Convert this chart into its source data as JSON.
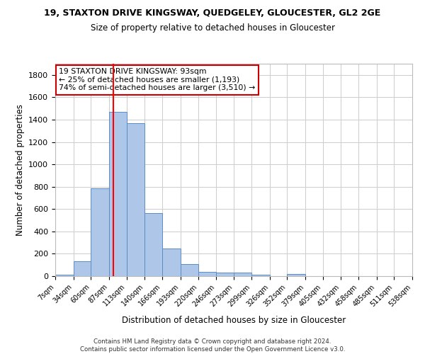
{
  "title1": "19, STAXTON DRIVE KINGSWAY, QUEDGELEY, GLOUCESTER, GL2 2GE",
  "title2": "Size of property relative to detached houses in Gloucester",
  "xlabel": "Distribution of detached houses by size in Gloucester",
  "ylabel": "Number of detached properties",
  "footnote": "Contains HM Land Registry data © Crown copyright and database right 2024.\nContains public sector information licensed under the Open Government Licence v3.0.",
  "bin_edges": [
    7,
    34,
    60,
    87,
    113,
    140,
    166,
    193,
    220,
    246,
    273,
    299,
    326,
    352,
    379,
    405,
    432,
    458,
    485,
    511,
    538
  ],
  "bar_heights": [
    15,
    130,
    785,
    1470,
    1370,
    565,
    250,
    110,
    35,
    30,
    30,
    15,
    0,
    20,
    0,
    0,
    0,
    0,
    0,
    0
  ],
  "bar_color": "#aec6e8",
  "bar_edge_color": "#5b8cc8",
  "vline_x": 93,
  "vline_color": "red",
  "ylim": [
    0,
    1900
  ],
  "yticks": [
    0,
    200,
    400,
    600,
    800,
    1000,
    1200,
    1400,
    1600,
    1800
  ],
  "annotation_box_text": "19 STAXTON DRIVE KINGSWAY: 93sqm\n← 25% of detached houses are smaller (1,193)\n74% of semi-detached houses are larger (3,510) →",
  "annotation_box_color": "#cc0000",
  "background_color": "#ffffff",
  "grid_color": "#cccccc"
}
